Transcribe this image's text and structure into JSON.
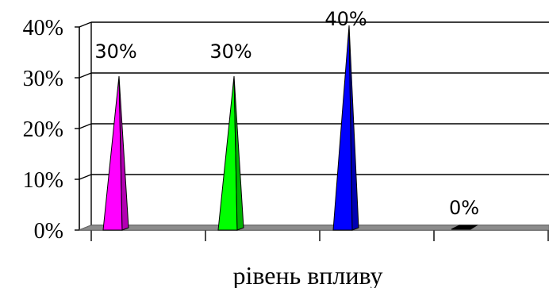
{
  "chart_data": {
    "type": "bar",
    "categories": [
      "",
      "",
      "",
      ""
    ],
    "values": [
      30,
      30,
      40,
      0
    ],
    "data_labels": [
      "30%",
      "30%",
      "40%",
      "0%"
    ],
    "colors": [
      "#ff00ff",
      "#00ff00",
      "#0000ff",
      "#000000"
    ],
    "bar_style": "3d-cone",
    "xlabel": "рівень впливу",
    "ylabel": "",
    "ylim": [
      0,
      40
    ],
    "yticks": [
      "0%",
      "10%",
      "20%",
      "30%",
      "40%"
    ],
    "grid": true,
    "legend": "none"
  }
}
